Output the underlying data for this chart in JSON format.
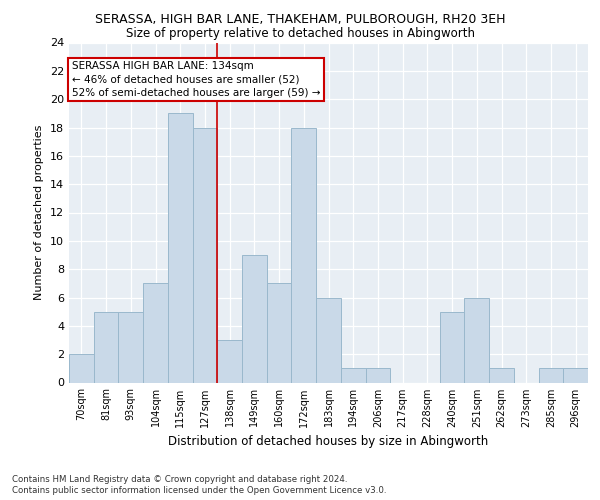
{
  "title": "SERASSA, HIGH BAR LANE, THAKEHAM, PULBOROUGH, RH20 3EH",
  "subtitle": "Size of property relative to detached houses in Abingworth",
  "xlabel": "Distribution of detached houses by size in Abingworth",
  "ylabel": "Number of detached properties",
  "bar_labels": [
    "70sqm",
    "81sqm",
    "93sqm",
    "104sqm",
    "115sqm",
    "127sqm",
    "138sqm",
    "149sqm",
    "160sqm",
    "172sqm",
    "183sqm",
    "194sqm",
    "206sqm",
    "217sqm",
    "228sqm",
    "240sqm",
    "251sqm",
    "262sqm",
    "273sqm",
    "285sqm",
    "296sqm"
  ],
  "bar_values": [
    2,
    5,
    5,
    7,
    19,
    18,
    3,
    9,
    7,
    18,
    6,
    1,
    1,
    0,
    0,
    5,
    6,
    1,
    0,
    1,
    1
  ],
  "bar_color": "#c9d9e8",
  "bar_edgecolor": "#9ab8cc",
  "vline_x": 5.5,
  "vline_color": "#cc0000",
  "annotation_line1": "SERASSA HIGH BAR LANE: 134sqm",
  "annotation_line2": "← 46% of detached houses are smaller (52)",
  "annotation_line3": "52% of semi-detached houses are larger (59) →",
  "annotation_box_color": "white",
  "annotation_box_edgecolor": "#cc0000",
  "ylim": [
    0,
    24
  ],
  "yticks": [
    0,
    2,
    4,
    6,
    8,
    10,
    12,
    14,
    16,
    18,
    20,
    22,
    24
  ],
  "footer1": "Contains HM Land Registry data © Crown copyright and database right 2024.",
  "footer2": "Contains public sector information licensed under the Open Government Licence v3.0.",
  "plot_background": "#e8eef4"
}
